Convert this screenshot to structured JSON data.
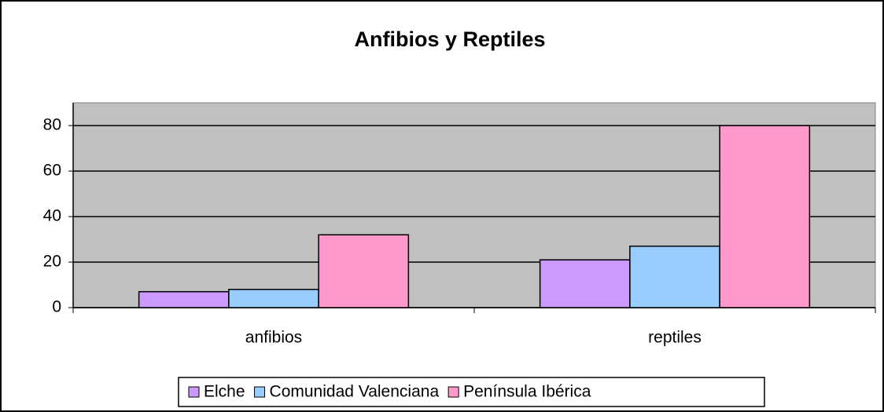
{
  "chart_data": {
    "type": "bar",
    "title": "Anfibios y Reptiles",
    "categories": [
      "anfibios",
      "reptiles"
    ],
    "series": [
      {
        "name": "Elche",
        "color": "#cc99ff",
        "values": [
          7,
          21
        ]
      },
      {
        "name": "Comunidad Valenciana",
        "color": "#99ccff",
        "values": [
          8,
          27
        ]
      },
      {
        "name": "Península Ibérica",
        "color": "#ff99cc",
        "values": [
          32,
          80
        ]
      }
    ],
    "ylim": [
      0,
      90
    ],
    "yticks": [
      0,
      20,
      40,
      60,
      80
    ],
    "grid": true,
    "legend": "bottom"
  }
}
